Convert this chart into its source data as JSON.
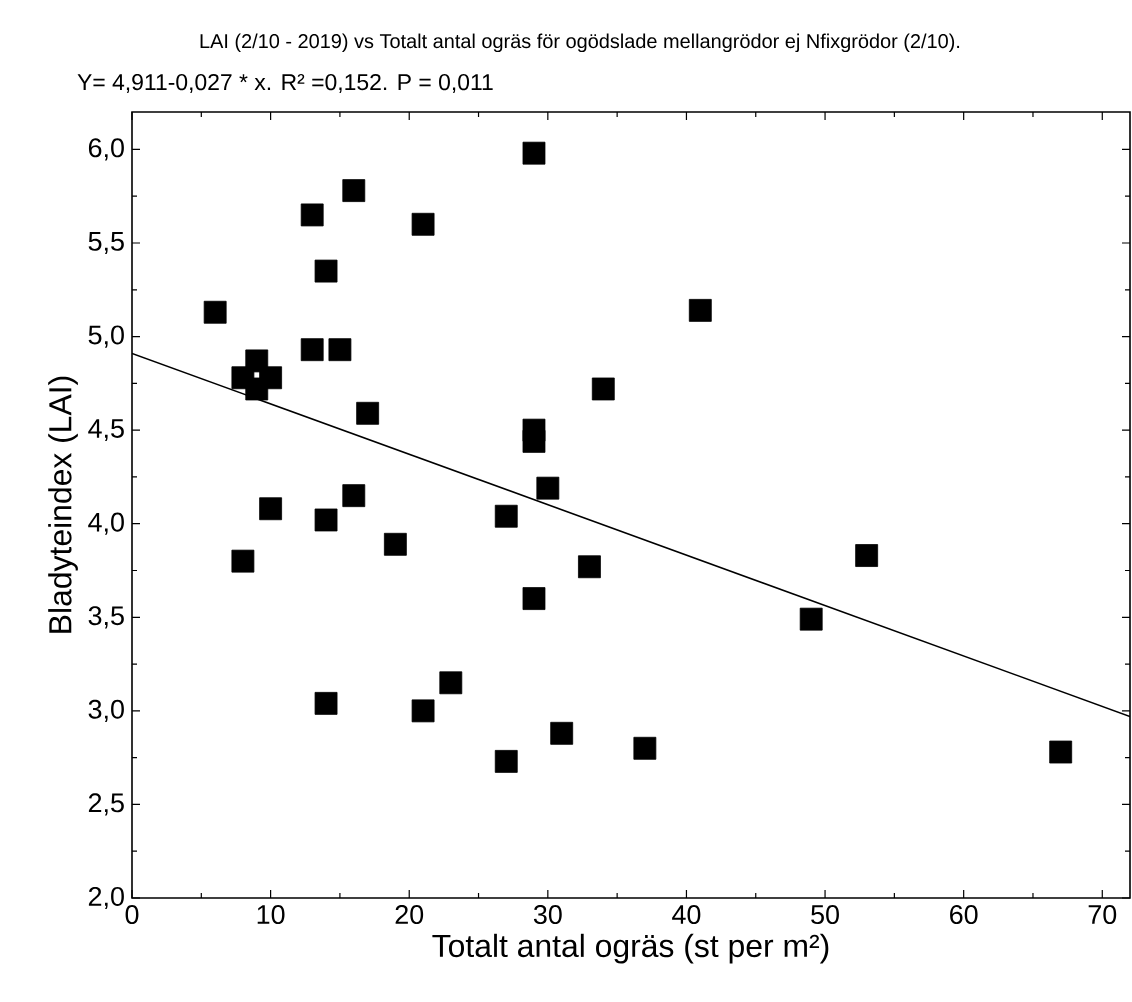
{
  "chart_data": {
    "type": "scatter",
    "title": "LAI (2/10 - 2019) vs Totalt antal ogräs för ogödslade mellangrödor ej Nfixgrödor (2/10).",
    "subtitle": "Y= 4,911-0,027 * x.  R² =0,152. P = 0,011",
    "xlabel": "Totalt antal ogräs (st per m²)",
    "ylabel": "Bladyteindex (LAI)",
    "xlim": [
      0,
      72
    ],
    "ylim": [
      2.0,
      6.2
    ],
    "xticks": [
      0,
      10,
      20,
      30,
      40,
      50,
      60,
      70
    ],
    "yticks": [
      {
        "value": 2.0,
        "label": "2,0"
      },
      {
        "value": 2.5,
        "label": "2,5"
      },
      {
        "value": 3.0,
        "label": "3,0"
      },
      {
        "value": 3.5,
        "label": "3,5"
      },
      {
        "value": 4.0,
        "label": "4,0"
      },
      {
        "value": 4.5,
        "label": "4,5"
      },
      {
        "value": 5.0,
        "label": "5,0"
      },
      {
        "value": 5.5,
        "label": "5,5"
      },
      {
        "value": 6.0,
        "label": "6,0"
      }
    ],
    "grid": false,
    "marker": "square",
    "series": [
      {
        "color": "#000000",
        "x": [
          6,
          8,
          8,
          9,
          9,
          10,
          10,
          13,
          13,
          14,
          14,
          14,
          15,
          16,
          16,
          17,
          19,
          21,
          21,
          23,
          27,
          27,
          29,
          29,
          29,
          29,
          30,
          31,
          33,
          34,
          37,
          41,
          49,
          53,
          67
        ],
        "values": [
          5.13,
          4.78,
          3.8,
          4.87,
          4.72,
          4.78,
          4.08,
          5.65,
          4.93,
          5.35,
          4.02,
          3.04,
          4.93,
          5.78,
          4.15,
          4.59,
          3.89,
          5.6,
          3.0,
          3.15,
          4.04,
          2.73,
          5.98,
          4.5,
          4.44,
          3.6,
          4.19,
          2.88,
          3.77,
          4.72,
          2.8,
          5.14,
          3.49,
          3.83,
          2.78
        ]
      },
      {
        "type": "line",
        "color": "#000000",
        "marker": "none",
        "line_style": "solid",
        "x": [
          0,
          72
        ],
        "values": [
          4.91,
          2.97
        ]
      }
    ]
  }
}
